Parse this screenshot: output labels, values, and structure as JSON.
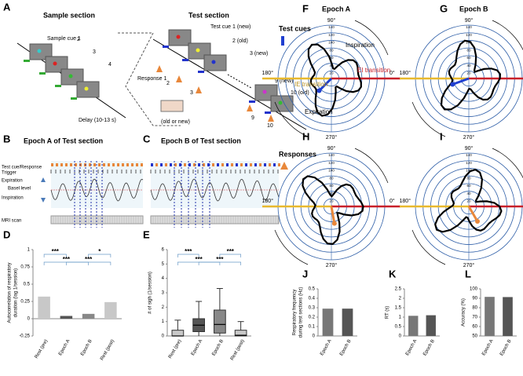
{
  "panels": {
    "A": {
      "letter": "A",
      "sample_title": "Sample section",
      "test_title": "Test section",
      "sample_cues": [
        "Sample cue 1",
        "2",
        "3",
        "4"
      ],
      "delay": "Delay (10-13 s)",
      "test_cues": [
        "Test cue 1 (new)",
        "2 (old)",
        "3 (new)",
        "9 (new)",
        "10 (old)"
      ],
      "responses": [
        "Response 1",
        "2",
        "3",
        "9",
        "10"
      ],
      "judgement": "(old or new)"
    },
    "B": {
      "letter": "B",
      "title": "Epoch A of Test section"
    },
    "C": {
      "letter": "C",
      "title": "Epoch B of Test section"
    },
    "trace_labels": {
      "cue": "Test cue/Response",
      "trigger": "Trigger",
      "expiration": "Expiration",
      "basal": "Basel level",
      "inspiration": "Inspiration",
      "mri": "MRI scan"
    },
    "polar": {
      "angles": [
        "90°",
        "180°",
        "0°",
        "270°"
      ],
      "rlim": [
        0,
        140
      ],
      "rticks": [
        20,
        40,
        60,
        80,
        100,
        120,
        140
      ]
    },
    "F": {
      "letter": "F",
      "title": "Epoch A",
      "legend": "Test cues",
      "inspiration": "Inspiration",
      "ei": "EI transition",
      "ie": "IE transition",
      "expiration": "Expiration"
    },
    "G": {
      "letter": "G",
      "title": "Epoch B"
    },
    "H": {
      "letter": "H",
      "legend": "Responses"
    },
    "I": {
      "letter": "I"
    }
  },
  "chart_data": [
    {
      "type": "bar",
      "panel": "D",
      "ylabel": [
        "Autocorrelation of respiratory",
        "duration (lag 1/session)"
      ],
      "categories": [
        "Rest (pre)",
        "Epoch A",
        "Epoch B",
        "Rest (post)"
      ],
      "values": [
        0.32,
        0.04,
        0.07,
        0.24
      ],
      "colors": [
        "#c8c8c8",
        "#555555",
        "#888888",
        "#c8c8c8"
      ],
      "ylim": [
        -0.25,
        1
      ],
      "yticks": [
        -0.25,
        0,
        0.25,
        0.5,
        0.75,
        1
      ],
      "annotations": [
        "***",
        "***",
        "*",
        "***"
      ]
    },
    {
      "type": "box",
      "panel": "E",
      "ylabel": [
        "# of sigh (1/session)"
      ],
      "categories": [
        "Rest (pre)",
        "Epoch A",
        "Epoch B",
        "Rest (post)"
      ],
      "boxes": [
        {
          "min": 0,
          "q1": 0,
          "median": 0,
          "q3": 0.4,
          "max": 1.1
        },
        {
          "min": 0,
          "q1": 0.3,
          "median": 0.75,
          "q3": 1.2,
          "max": 2.4
        },
        {
          "min": 0,
          "q1": 0.2,
          "median": 0.8,
          "q3": 1.8,
          "max": 3.3
        },
        {
          "min": 0,
          "q1": 0,
          "median": 0.05,
          "q3": 0.4,
          "max": 1
        }
      ],
      "colors": [
        "#c8c8c8",
        "#555555",
        "#888888",
        "#c8c8c8"
      ],
      "ylim": [
        0,
        6
      ],
      "yticks": [
        0,
        1,
        2,
        3,
        4,
        5,
        6
      ],
      "annotations": [
        "***",
        "***",
        "***",
        "***"
      ]
    },
    {
      "type": "bar",
      "panel": "J",
      "ylabel": [
        "Respiratory frequency",
        "during test sections (Hz)"
      ],
      "categories": [
        "Epoch A",
        "Epoch B"
      ],
      "values": [
        0.29,
        0.29
      ],
      "colors": [
        "#777777",
        "#555555"
      ],
      "ylim": [
        0,
        0.5
      ],
      "yticks": [
        0,
        0.1,
        0.2,
        0.3,
        0.4,
        0.5
      ]
    },
    {
      "type": "bar",
      "panel": "K",
      "ylabel": [
        "RT (s)"
      ],
      "categories": [
        "Epoch A",
        "Epoch B"
      ],
      "values": [
        1.07,
        1.1
      ],
      "colors": [
        "#777777",
        "#555555"
      ],
      "ylim": [
        0,
        2.5
      ],
      "yticks": [
        0,
        0.5,
        1,
        1.5,
        2,
        2.5
      ]
    },
    {
      "type": "bar",
      "panel": "L",
      "ylabel": [
        "Accuracy (%)"
      ],
      "categories": [
        "Epoch A",
        "Epoch B"
      ],
      "values": [
        91.5,
        91.3
      ],
      "colors": [
        "#777777",
        "#555555"
      ],
      "ylim": [
        50,
        100
      ],
      "yticks": [
        50,
        60,
        70,
        80,
        90,
        100
      ]
    }
  ]
}
